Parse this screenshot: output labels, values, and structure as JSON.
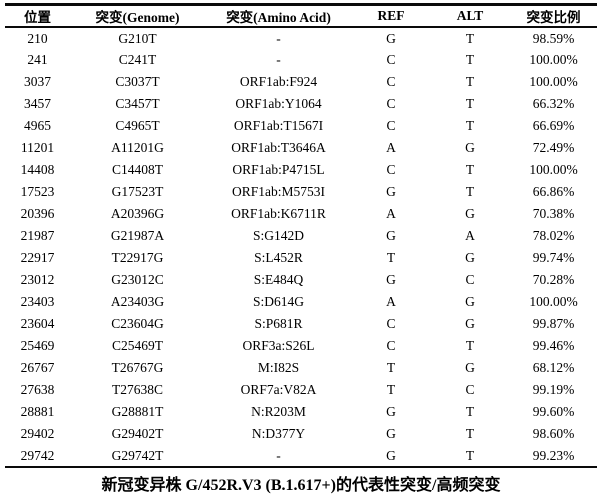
{
  "table": {
    "columns": [
      {
        "label": "位置"
      },
      {
        "label": "突变(Genome)"
      },
      {
        "label": "突变(Amino Acid)"
      },
      {
        "label": "REF"
      },
      {
        "label": "ALT"
      },
      {
        "label": "突变比例"
      }
    ],
    "rows": [
      [
        "210",
        "G210T",
        "-",
        "G",
        "T",
        "98.59%"
      ],
      [
        "241",
        "C241T",
        "-",
        "C",
        "T",
        "100.00%"
      ],
      [
        "3037",
        "C3037T",
        "ORF1ab:F924",
        "C",
        "T",
        "100.00%"
      ],
      [
        "3457",
        "C3457T",
        "ORF1ab:Y1064",
        "C",
        "T",
        "66.32%"
      ],
      [
        "4965",
        "C4965T",
        "ORF1ab:T1567I",
        "C",
        "T",
        "66.69%"
      ],
      [
        "11201",
        "A11201G",
        "ORF1ab:T3646A",
        "A",
        "G",
        "72.49%"
      ],
      [
        "14408",
        "C14408T",
        "ORF1ab:P4715L",
        "C",
        "T",
        "100.00%"
      ],
      [
        "17523",
        "G17523T",
        "ORF1ab:M5753I",
        "G",
        "T",
        "66.86%"
      ],
      [
        "20396",
        "A20396G",
        "ORF1ab:K6711R",
        "A",
        "G",
        "70.38%"
      ],
      [
        "21987",
        "G21987A",
        "S:G142D",
        "G",
        "A",
        "78.02%"
      ],
      [
        "22917",
        "T22917G",
        "S:L452R",
        "T",
        "G",
        "99.74%"
      ],
      [
        "23012",
        "G23012C",
        "S:E484Q",
        "G",
        "C",
        "70.28%"
      ],
      [
        "23403",
        "A23403G",
        "S:D614G",
        "A",
        "G",
        "100.00%"
      ],
      [
        "23604",
        "C23604G",
        "S:P681R",
        "C",
        "G",
        "99.87%"
      ],
      [
        "25469",
        "C25469T",
        "ORF3a:S26L",
        "C",
        "T",
        "99.46%"
      ],
      [
        "26767",
        "T26767G",
        "M:I82S",
        "T",
        "G",
        "68.12%"
      ],
      [
        "27638",
        "T27638C",
        "ORF7a:V82A",
        "T",
        "C",
        "99.19%"
      ],
      [
        "28881",
        "G28881T",
        "N:R203M",
        "G",
        "T",
        "99.60%"
      ],
      [
        "29402",
        "G29402T",
        "N:D377Y",
        "G",
        "T",
        "98.60%"
      ],
      [
        "29742",
        "G29742T",
        "-",
        "G",
        "T",
        "99.23%"
      ]
    ]
  },
  "caption": "新冠变异株 G/452R.V3 (B.1.617+)的代表性突变/高频突变"
}
